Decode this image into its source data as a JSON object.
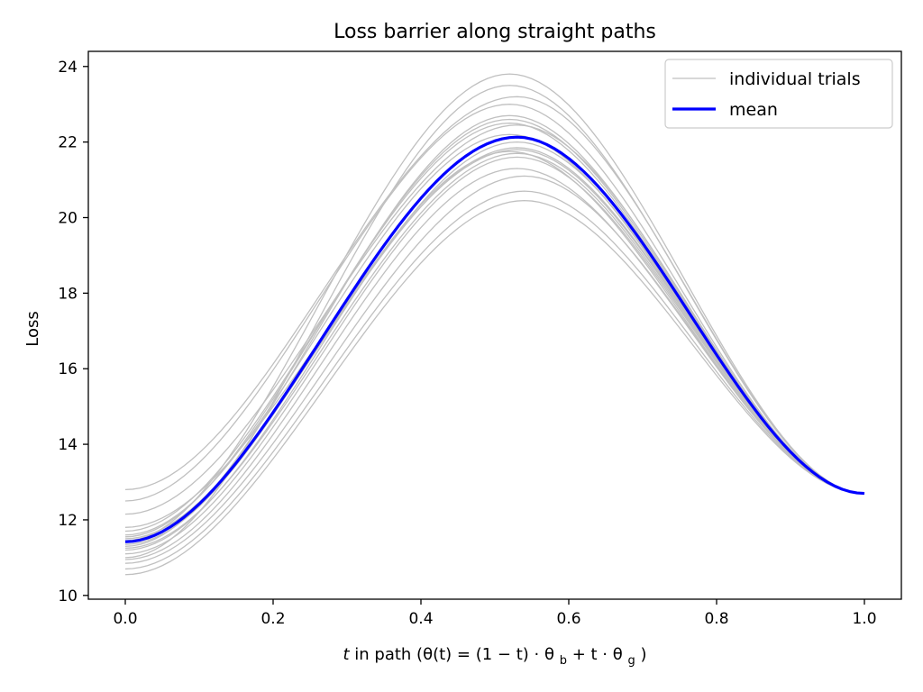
{
  "chart_data": {
    "type": "line",
    "title": "Loss barrier along straight paths",
    "xlabel_prefix": "t",
    "xlabel": "in path (θ(t) = (1 − t) · θ",
    "xlabel_sub_b": "b",
    "xlabel_mid": " + t · θ",
    "xlabel_sub_g": "g",
    "xlabel_end": ")",
    "ylabel": "Loss",
    "xlim": [
      -0.05,
      1.05
    ],
    "ylim": [
      9.9,
      24.4
    ],
    "xticks": [
      0.0,
      0.2,
      0.4,
      0.6,
      0.8,
      1.0
    ],
    "xtick_labels": [
      "0.0",
      "0.2",
      "0.4",
      "0.6",
      "0.8",
      "1.0"
    ],
    "yticks": [
      10,
      12,
      14,
      16,
      18,
      20,
      22,
      24
    ],
    "ytick_labels": [
      "10",
      "12",
      "14",
      "16",
      "18",
      "20",
      "22",
      "24"
    ],
    "grid": false,
    "legend_position": "top-right",
    "legend": [
      {
        "label": "individual trials",
        "color": "#c0c0c0",
        "style": "thin"
      },
      {
        "label": "mean",
        "color": "#0000ff",
        "style": "thick"
      }
    ],
    "end_value": 12.7,
    "trials": [
      {
        "start": 10.55,
        "peak_t": 0.54,
        "peak": 20.45
      },
      {
        "start": 10.7,
        "peak_t": 0.54,
        "peak": 20.7
      },
      {
        "start": 10.85,
        "peak_t": 0.54,
        "peak": 21.1
      },
      {
        "start": 10.95,
        "peak_t": 0.53,
        "peak": 21.3
      },
      {
        "start": 11.1,
        "peak_t": 0.53,
        "peak": 21.6
      },
      {
        "start": 11.25,
        "peak_t": 0.53,
        "peak": 21.7
      },
      {
        "start": 11.35,
        "peak_t": 0.52,
        "peak": 21.75
      },
      {
        "start": 11.5,
        "peak_t": 0.53,
        "peak": 21.85
      },
      {
        "start": 11.6,
        "peak_t": 0.52,
        "peak": 22.2
      },
      {
        "start": 11.7,
        "peak_t": 0.52,
        "peak": 22.5
      },
      {
        "start": 11.55,
        "peak_t": 0.52,
        "peak": 22.6
      },
      {
        "start": 11.3,
        "peak_t": 0.52,
        "peak": 22.7
      },
      {
        "start": 12.15,
        "peak_t": 0.53,
        "peak": 22.45
      },
      {
        "start": 12.5,
        "peak_t": 0.52,
        "peak": 23.0
      },
      {
        "start": 12.8,
        "peak_t": 0.53,
        "peak": 23.2
      },
      {
        "start": 11.0,
        "peak_t": 0.52,
        "peak": 23.5
      },
      {
        "start": 11.45,
        "peak_t": 0.52,
        "peak": 23.8
      },
      {
        "start": 11.8,
        "peak_t": 0.53,
        "peak": 21.8
      },
      {
        "start": 11.2,
        "peak_t": 0.53,
        "peak": 22.0
      }
    ],
    "mean": {
      "start": 11.42,
      "peak_t": 0.53,
      "peak": 22.13
    },
    "colors": {
      "trials": "#c0c0c0",
      "mean": "#0000ff"
    }
  }
}
